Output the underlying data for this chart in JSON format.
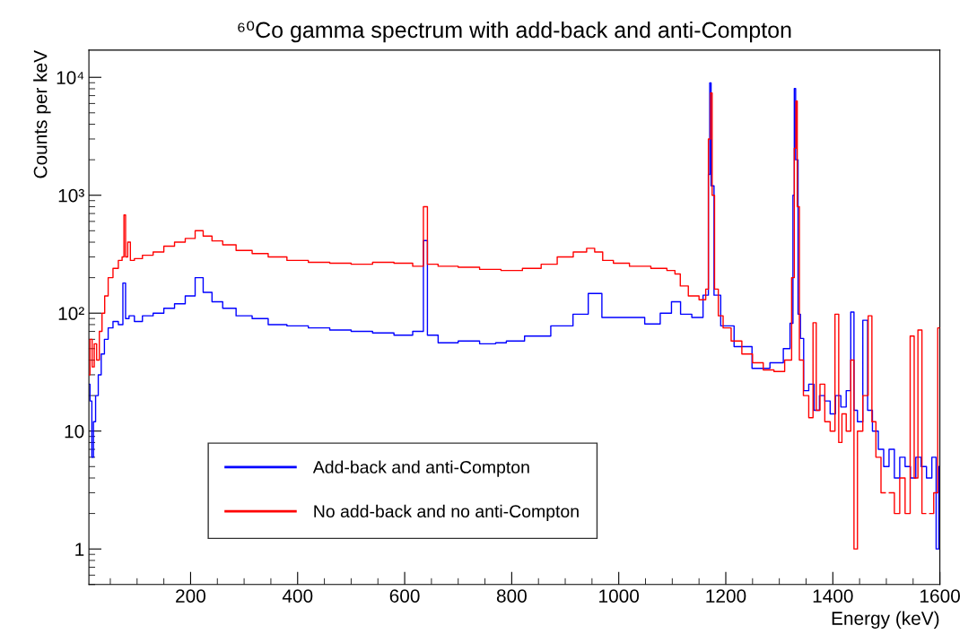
{
  "chart_data": {
    "type": "step",
    "title": "⁶⁰Co gamma spectrum with add-back and anti-Compton",
    "xlabel": "Energy (keV)",
    "ylabel": "Counts per keV",
    "log": "y",
    "xlim": [
      10,
      1600
    ],
    "xticks": [
      200,
      400,
      600,
      800,
      1000,
      1200,
      1400,
      1600
    ],
    "ylim": [
      0.5,
      17000
    ],
    "yticks": [
      {
        "value": 1,
        "label": "1"
      },
      {
        "value": 10,
        "label": "10"
      },
      {
        "value": 100,
        "label": "10²"
      },
      {
        "value": 1000,
        "label": "10³"
      },
      {
        "value": 10000,
        "label": "10⁴"
      }
    ],
    "legend": "bottom left",
    "grid": false,
    "series": [
      {
        "name": "Add-back and anti-Compton",
        "color": "#0000ff",
        "x": [
          10,
          14,
          17,
          20,
          25,
          30,
          36,
          42,
          50,
          60,
          70,
          77,
          80,
          90,
          100,
          120,
          140,
          160,
          180,
          200,
          217,
          230,
          250,
          270,
          300,
          330,
          360,
          400,
          440,
          480,
          520,
          560,
          600,
          630,
          640,
          645,
          680,
          720,
          760,
          780,
          800,
          848,
          898,
          931,
          955,
          982,
          1032,
          1065,
          1090,
          1107,
          1124,
          1149,
          1166,
          1169,
          1171,
          1174,
          1182,
          1199,
          1232,
          1266,
          1299,
          1316,
          1324,
          1327,
          1329,
          1332,
          1338,
          1341,
          1350,
          1360,
          1370,
          1380,
          1390,
          1400,
          1410,
          1420,
          1430,
          1437,
          1442,
          1450,
          1462,
          1468,
          1480,
          1490,
          1500,
          1510,
          1520,
          1530,
          1540,
          1550,
          1560,
          1570,
          1580,
          1590,
          1596,
          1600
        ],
        "values": [
          25,
          18,
          6,
          12,
          20,
          30,
          45,
          60,
          75,
          85,
          80,
          180,
          90,
          95,
          85,
          95,
          100,
          110,
          120,
          140,
          200,
          150,
          125,
          110,
          95,
          90,
          80,
          78,
          75,
          72,
          70,
          68,
          65,
          70,
          413,
          65,
          56,
          58,
          55,
          56,
          58,
          64,
          78,
          98,
          147,
          92,
          92,
          81,
          100,
          125,
          98,
          92,
          142,
          1500,
          8950,
          1200,
          142,
          78,
          52,
          34,
          38,
          50,
          82,
          1000,
          8030,
          2000,
          98,
          61,
          22,
          25,
          15,
          20,
          18,
          14,
          20,
          16,
          22,
          102,
          15,
          12,
          87,
          15,
          10,
          7,
          5,
          7,
          4,
          6,
          5,
          4,
          6,
          5,
          4,
          6,
          1,
          5
        ]
      },
      {
        "name": "No add-back and no anti-Compton",
        "color": "#ff0000",
        "x": [
          10,
          14,
          18,
          22,
          27,
          32,
          37,
          42,
          50,
          60,
          70,
          74,
          77,
          80,
          85,
          90,
          100,
          120,
          140,
          160,
          180,
          200,
          217,
          230,
          250,
          270,
          300,
          330,
          360,
          400,
          440,
          480,
          520,
          560,
          600,
          630,
          640,
          645,
          680,
          720,
          760,
          800,
          840,
          870,
          900,
          930,
          950,
          960,
          980,
          1000,
          1040,
          1080,
          1100,
          1110,
          1120,
          1140,
          1160,
          1165,
          1170,
          1173,
          1176,
          1182,
          1190,
          1200,
          1220,
          1240,
          1260,
          1280,
          1300,
          1320,
          1326,
          1330,
          1332,
          1335,
          1340,
          1350,
          1360,
          1366,
          1372,
          1380,
          1390,
          1400,
          1408,
          1414,
          1420,
          1430,
          1437,
          1442,
          1450,
          1462,
          1470,
          1476,
          1485,
          1495,
          1501,
          1510,
          1520,
          1530,
          1540,
          1549,
          1555,
          1563,
          1570,
          1577,
          1585,
          1592,
          1600
        ],
        "values": [
          30,
          60,
          35,
          55,
          40,
          70,
          100,
          140,
          200,
          240,
          280,
          300,
          680,
          300,
          400,
          280,
          290,
          310,
          330,
          370,
          400,
          430,
          500,
          450,
          410,
          380,
          340,
          320,
          300,
          280,
          270,
          265,
          260,
          270,
          265,
          250,
          800,
          260,
          250,
          245,
          235,
          230,
          240,
          260,
          300,
          330,
          355,
          330,
          280,
          265,
          250,
          240,
          230,
          215,
          170,
          140,
          130,
          160,
          3000,
          7350,
          1000,
          160,
          95,
          75,
          58,
          45,
          38,
          33,
          32,
          40,
          200,
          2500,
          6300,
          800,
          40,
          20,
          13,
          83,
          15,
          25,
          12,
          10,
          98,
          8,
          14,
          10,
          40,
          1,
          10,
          20,
          95,
          12,
          6,
          3,
          null,
          3,
          2,
          4,
          2,
          64,
          4,
          72,
          2,
          null,
          2,
          3,
          75
        ]
      }
    ]
  }
}
